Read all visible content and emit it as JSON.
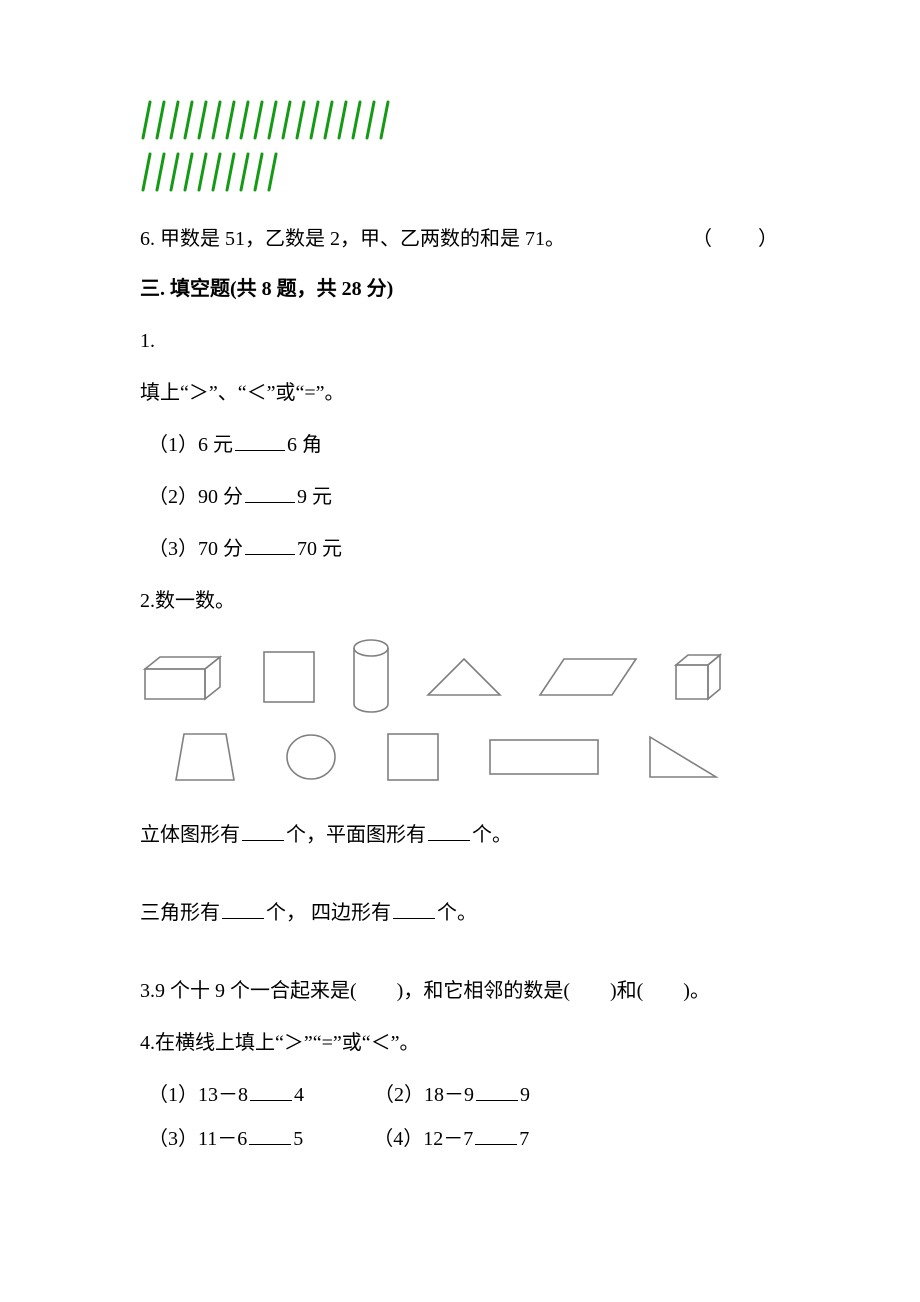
{
  "tallies": {
    "row1_count": 18,
    "row2_count": 10,
    "stroke": "#149b14",
    "stroke_width": 3
  },
  "q6": {
    "text": "6. 甲数是 51，乙数是 2，甲、乙两数的和是 71。",
    "paren": "（　　）"
  },
  "section3_header": "三. 填空题(共 8 题，共 28 分)",
  "q3_1": {
    "num": "1.",
    "prompt": "填上“＞”、“＜”或“=”。",
    "items": [
      {
        "label": "（1）6 元",
        "after": "6 角"
      },
      {
        "label": "（2）90 分",
        "after": "9 元"
      },
      {
        "label": "（3）70 分",
        "after": "70 元"
      }
    ]
  },
  "q3_2": {
    "num": "2.数一数。",
    "line_solid": {
      "pre": "立体图形有",
      "mid": "个，平面图形有",
      "post": "个。"
    },
    "line_tri": {
      "pre": "三角形有",
      "mid": "个，  四边形有",
      "post": "个。"
    }
  },
  "shapes": {
    "stroke": "#808080",
    "stroke_width": 1.6
  },
  "q3_3": "3.9 个十 9 个一合起来是(　　)，和它相邻的数是(　　)和(　　)。",
  "q3_4": {
    "header": "4.在横线上填上“＞”“=”或“＜”。",
    "rows": [
      [
        {
          "pre": "（1）13－8",
          "after": "4"
        },
        {
          "pre": "（2）18－9",
          "after": "9"
        }
      ],
      [
        {
          "pre": "（3）11－6",
          "after": "5"
        },
        {
          "pre": "（4）12－7",
          "after": "7"
        }
      ]
    ]
  }
}
